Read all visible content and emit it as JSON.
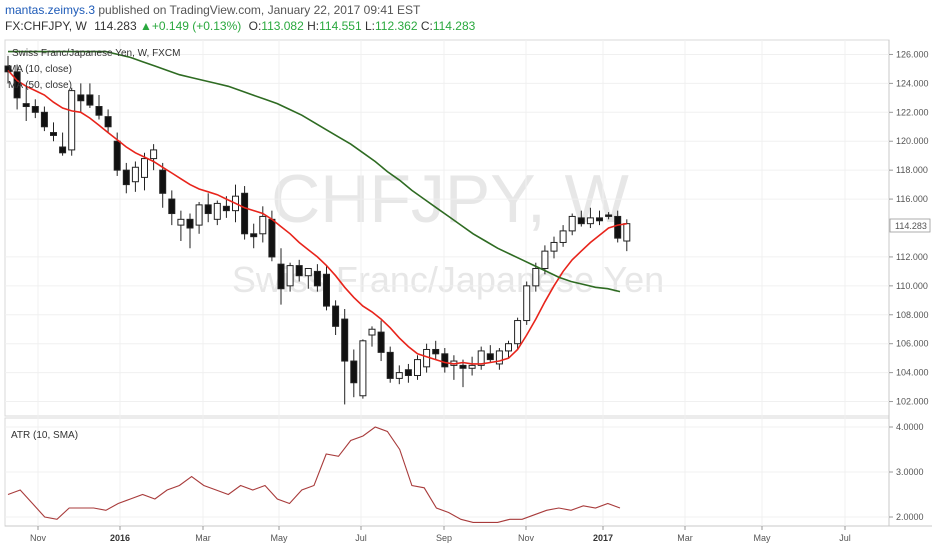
{
  "header": {
    "author": "mantas.zeimys.3",
    "published": "published on TradingView.com, January 22, 2017 09:41 EST",
    "symbol": "FX:CHFJPY, W",
    "price": "114.283",
    "arrow": "▲",
    "change": "+0.149 (+0.13%)",
    "o_label": "O:",
    "o_value": "113.082",
    "h_label": "H:",
    "h_value": "114.551",
    "l_label": "L:",
    "l_value": "112.362",
    "c_label": "C:",
    "c_value": "114.283"
  },
  "legend": {
    "instrument": "Swiss Franc/Japanese Yen, W, FXCM",
    "ma10": "MA (10, close)",
    "ma50": "MA (50, close)",
    "atr": "ATR (10, SMA)"
  },
  "watermark": {
    "line1": "CHFJPY, W",
    "line2": "Swiss Franc/Japanese Yen"
  },
  "colors": {
    "ma10": "#e8241b",
    "ma50": "#2e6b22",
    "atr": "#a83b3b",
    "up": "#2aa83e",
    "last_price_bg": "#ffffff"
  },
  "price_axis": {
    "ticks": [
      "126.000",
      "124.000",
      "122.000",
      "120.000",
      "118.000",
      "116.000",
      "112.000",
      "110.000",
      "108.000",
      "106.000",
      "104.000",
      "102.000"
    ],
    "last_price": "114.283"
  },
  "atr_axis": {
    "ticks": [
      "4.0000",
      "3.0000",
      "2.0000"
    ]
  },
  "time_axis": {
    "labels": [
      "Nov",
      "2016",
      "Mar",
      "May",
      "Jul",
      "Sep",
      "Nov",
      "2017",
      "Mar",
      "May",
      "Jul"
    ]
  },
  "chart_data": [
    {
      "type": "candlestick",
      "title": "Swiss Franc/Japanese Yen, W, FXCM",
      "ylim": [
        101,
        127
      ],
      "candles": [
        [
          125.2,
          125.9,
          124.0,
          124.8
        ],
        [
          124.8,
          125.3,
          122.2,
          123.0
        ],
        [
          122.6,
          123.8,
          121.4,
          122.4
        ],
        [
          122.4,
          122.9,
          121.6,
          122.0
        ],
        [
          122.0,
          122.4,
          120.7,
          121.0
        ],
        [
          120.6,
          121.3,
          120.0,
          120.4
        ],
        [
          119.6,
          120.6,
          119.0,
          119.2
        ],
        [
          119.4,
          123.7,
          119.0,
          123.5
        ],
        [
          123.2,
          124.0,
          122.0,
          122.8
        ],
        [
          123.2,
          124.0,
          122.3,
          122.5
        ],
        [
          122.4,
          123.2,
          121.5,
          121.8
        ],
        [
          121.7,
          122.2,
          120.6,
          121.0
        ],
        [
          120.0,
          120.6,
          117.6,
          118.0
        ],
        [
          118.0,
          118.5,
          116.4,
          117.0
        ],
        [
          117.2,
          118.6,
          116.5,
          118.2
        ],
        [
          117.5,
          119.2,
          116.6,
          118.8
        ],
        [
          118.8,
          119.8,
          118.0,
          119.4
        ],
        [
          118.0,
          118.5,
          115.4,
          116.4
        ],
        [
          116.0,
          116.6,
          114.2,
          115.0
        ],
        [
          114.2,
          115.2,
          113.1,
          114.6
        ],
        [
          114.6,
          115.0,
          112.6,
          114.0
        ],
        [
          114.2,
          115.8,
          113.6,
          115.6
        ],
        [
          115.6,
          116.4,
          114.4,
          115.0
        ],
        [
          114.6,
          115.9,
          114.2,
          115.7
        ],
        [
          115.5,
          116.2,
          114.7,
          115.2
        ],
        [
          115.2,
          117.0,
          114.4,
          116.2
        ],
        [
          116.4,
          116.9,
          113.2,
          113.6
        ],
        [
          113.6,
          114.3,
          112.6,
          113.4
        ],
        [
          113.6,
          115.5,
          113.0,
          114.8
        ],
        [
          114.6,
          115.2,
          111.7,
          112.0
        ],
        [
          111.5,
          112.6,
          108.7,
          109.8
        ],
        [
          110.0,
          111.6,
          109.6,
          111.4
        ],
        [
          111.4,
          111.8,
          110.3,
          110.7
        ],
        [
          110.7,
          111.2,
          109.8,
          111.2
        ],
        [
          111.0,
          111.5,
          109.6,
          110.0
        ],
        [
          110.8,
          111.4,
          108.3,
          108.6
        ],
        [
          108.6,
          109.0,
          106.6,
          107.2
        ],
        [
          107.7,
          108.4,
          101.8,
          104.8
        ],
        [
          104.8,
          105.6,
          102.3,
          103.3
        ],
        [
          102.4,
          106.3,
          102.2,
          106.2
        ],
        [
          106.6,
          107.2,
          105.8,
          107.0
        ],
        [
          106.8,
          107.6,
          104.8,
          105.4
        ],
        [
          105.4,
          105.8,
          103.3,
          103.6
        ],
        [
          103.6,
          104.5,
          103.2,
          104.0
        ],
        [
          104.2,
          104.6,
          103.3,
          103.8
        ],
        [
          103.8,
          105.2,
          103.5,
          104.9
        ],
        [
          104.4,
          106.0,
          104.0,
          105.6
        ],
        [
          105.6,
          106.2,
          104.9,
          105.3
        ],
        [
          105.3,
          105.7,
          104.0,
          104.4
        ],
        [
          104.5,
          105.2,
          103.5,
          104.8
        ],
        [
          104.5,
          104.9,
          103.0,
          104.3
        ],
        [
          104.3,
          105.1,
          103.8,
          104.5
        ],
        [
          104.5,
          105.8,
          104.2,
          105.5
        ],
        [
          105.3,
          105.9,
          104.7,
          104.9
        ],
        [
          104.6,
          105.7,
          104.2,
          105.5
        ],
        [
          105.5,
          106.2,
          105.0,
          106.0
        ],
        [
          106.0,
          107.8,
          105.6,
          107.6
        ],
        [
          107.6,
          110.3,
          107.3,
          110.0
        ],
        [
          110.0,
          111.6,
          109.6,
          111.2
        ],
        [
          111.2,
          112.8,
          110.8,
          112.4
        ],
        [
          112.4,
          113.4,
          111.9,
          113.0
        ],
        [
          113.0,
          114.2,
          112.7,
          113.8
        ],
        [
          113.8,
          115.0,
          113.5,
          114.8
        ],
        [
          114.7,
          115.2,
          114.1,
          114.3
        ],
        [
          114.3,
          115.4,
          114.0,
          114.7
        ],
        [
          114.7,
          115.2,
          114.2,
          114.5
        ],
        [
          114.9,
          115.1,
          114.6,
          114.8
        ],
        [
          114.8,
          115.2,
          113.0,
          113.3
        ],
        [
          113.1,
          114.6,
          112.4,
          114.3
        ]
      ],
      "series": [
        {
          "name": "MA (10, close)",
          "values": [
            124.9,
            124.2,
            123.8,
            123.5,
            123.2,
            122.7,
            122.3,
            122.1,
            122.0,
            121.6,
            121.1,
            120.6,
            120.1,
            119.6,
            119.2,
            118.9,
            118.6,
            118.2,
            117.8,
            117.4,
            117.0,
            116.7,
            116.5,
            116.3,
            116.0,
            115.7,
            115.4,
            115.2,
            115.0,
            114.6,
            114.1,
            113.6,
            113.0,
            112.5,
            112.0,
            111.4,
            110.7,
            109.9,
            109.2,
            108.6,
            108.2,
            107.7,
            107.1,
            106.4,
            105.8,
            105.3,
            105.1,
            104.9,
            104.7,
            104.6,
            104.7,
            104.6,
            104.6,
            104.7,
            104.8,
            105.0,
            105.6,
            106.6,
            107.7,
            108.9,
            110.0,
            111.0,
            111.8,
            112.4,
            113.0,
            113.5,
            114.0,
            114.2,
            114.3
          ]
        },
        {
          "name": "MA (50, close)",
          "values": [
            126.2,
            126.2,
            126.2,
            126.2,
            126.2,
            126.2,
            126.2,
            126.2,
            126.2,
            126.0,
            125.8,
            125.5,
            125.2,
            124.9,
            124.6,
            124.4,
            124.2,
            124.0,
            123.8,
            123.5,
            123.2,
            122.9,
            122.6,
            122.2,
            121.8,
            121.3,
            120.8,
            120.3,
            119.8,
            119.2,
            118.6,
            117.9,
            117.3,
            116.6,
            116.0,
            115.4,
            114.8,
            114.2,
            113.6,
            113.1,
            112.6,
            112.2,
            111.8,
            111.4,
            111.0,
            110.6,
            110.3,
            110.1,
            109.9,
            109.8,
            109.6
          ]
        },
        {
          "name": "ATR (10, SMA)",
          "values": [
            2.5,
            2.6,
            2.3,
            2.0,
            1.95,
            2.2,
            2.2,
            2.2,
            2.15,
            2.3,
            2.4,
            2.5,
            2.4,
            2.6,
            2.7,
            2.9,
            2.7,
            2.6,
            2.5,
            2.7,
            2.6,
            2.7,
            2.4,
            2.3,
            2.6,
            2.7,
            3.4,
            3.35,
            3.7,
            3.8,
            4.0,
            3.9,
            3.5,
            2.7,
            2.65,
            2.2,
            2.1,
            1.95,
            1.88,
            1.88,
            1.88,
            1.95,
            1.95,
            2.05,
            2.15,
            2.2,
            2.15,
            2.25,
            2.2,
            2.3,
            2.2
          ]
        }
      ]
    }
  ]
}
